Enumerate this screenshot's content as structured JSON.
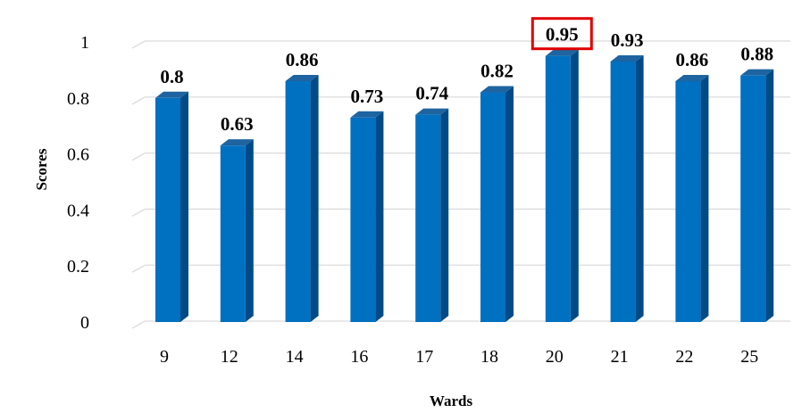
{
  "chart_data": {
    "type": "bar",
    "style": "3d-clustered-column",
    "categories": [
      "9",
      "12",
      "14",
      "16",
      "17",
      "18",
      "20",
      "21",
      "22",
      "25"
    ],
    "values": [
      0.8,
      0.63,
      0.86,
      0.73,
      0.74,
      0.82,
      0.95,
      0.93,
      0.86,
      0.88
    ],
    "value_labels": [
      "0.8",
      "0.63",
      "0.86",
      "0.73",
      "0.74",
      "0.82",
      "0.95",
      "0.93",
      "0.86",
      "0.88"
    ],
    "y_ticks": [
      "0",
      "0.2",
      "0.4",
      "0.6",
      "0.8",
      "1"
    ],
    "y_tick_values": [
      0,
      0.2,
      0.4,
      0.6,
      0.8,
      1
    ],
    "ylim": [
      0,
      1
    ],
    "xlabel": "Wards",
    "ylabel": "Scores",
    "grid": true,
    "legend": "none",
    "highlighted_category": "20",
    "colors": {
      "bar_front": "#0070C0",
      "bar_side": "#004B87",
      "bar_top": "#1E64A0",
      "gridline": "#D9D9D9",
      "highlight_box": "#E00000"
    }
  }
}
